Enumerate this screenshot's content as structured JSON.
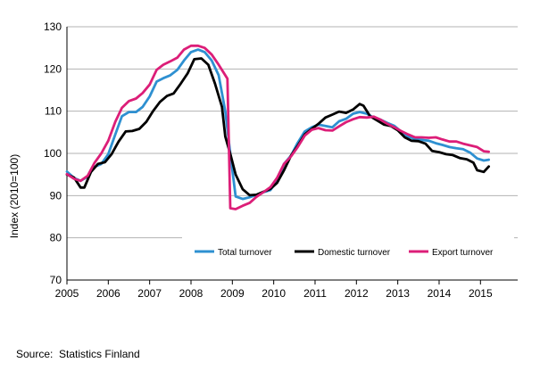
{
  "chart_data": {
    "type": "line",
    "title": "",
    "xlabel": "",
    "ylabel": "Index (2010=100)",
    "ylim": [
      70,
      130
    ],
    "yticks": [
      70,
      80,
      90,
      100,
      110,
      120,
      130
    ],
    "xlim": [
      2005,
      2015.9
    ],
    "xticks": [
      2005,
      2006,
      2007,
      2008,
      2009,
      2010,
      2011,
      2012,
      2013,
      2014,
      2015
    ],
    "xtick_labels": [
      "2005",
      "2006",
      "2007",
      "2008",
      "2009",
      "2010",
      "2011",
      "2012",
      "2013",
      "2014",
      "2015"
    ],
    "grid": "horizontal",
    "legend_position": "bottom-right",
    "series": [
      {
        "name": "Total turnover",
        "color": "#2e90d1",
        "points": [
          [
            2005.0,
            95.7
          ],
          [
            2005.17,
            94.2
          ],
          [
            2005.33,
            93.5
          ],
          [
            2005.5,
            94.5
          ],
          [
            2005.67,
            96.8
          ],
          [
            2005.83,
            97.5
          ],
          [
            2006.0,
            99.8
          ],
          [
            2006.17,
            104.5
          ],
          [
            2006.33,
            108.8
          ],
          [
            2006.5,
            109.8
          ],
          [
            2006.67,
            109.8
          ],
          [
            2006.83,
            111.0
          ],
          [
            2007.0,
            113.5
          ],
          [
            2007.17,
            117.0
          ],
          [
            2007.33,
            117.8
          ],
          [
            2007.5,
            118.5
          ],
          [
            2007.67,
            119.8
          ],
          [
            2007.83,
            122.0
          ],
          [
            2008.0,
            124.0
          ],
          [
            2008.17,
            124.6
          ],
          [
            2008.33,
            124.0
          ],
          [
            2008.5,
            122.0
          ],
          [
            2008.67,
            118.5
          ],
          [
            2008.83,
            110.0
          ],
          [
            2008.95,
            100.0
          ],
          [
            2009.08,
            89.8
          ],
          [
            2009.25,
            89.2
          ],
          [
            2009.42,
            89.6
          ],
          [
            2009.58,
            90.2
          ],
          [
            2009.75,
            90.8
          ],
          [
            2009.92,
            91.3
          ],
          [
            2010.08,
            93.5
          ],
          [
            2010.25,
            97.5
          ],
          [
            2010.42,
            99.5
          ],
          [
            2010.58,
            102.5
          ],
          [
            2010.75,
            105.2
          ],
          [
            2010.92,
            106.2
          ],
          [
            2011.08,
            106.8
          ],
          [
            2011.25,
            106.5
          ],
          [
            2011.42,
            106.2
          ],
          [
            2011.58,
            107.6
          ],
          [
            2011.75,
            108.2
          ],
          [
            2011.92,
            109.4
          ],
          [
            2012.08,
            109.8
          ],
          [
            2012.25,
            109.4
          ],
          [
            2012.42,
            108.5
          ],
          [
            2012.58,
            108.0
          ],
          [
            2012.75,
            107.2
          ],
          [
            2012.92,
            106.5
          ],
          [
            2013.08,
            105.2
          ],
          [
            2013.25,
            104.0
          ],
          [
            2013.42,
            103.4
          ],
          [
            2013.58,
            103.2
          ],
          [
            2013.75,
            103.0
          ],
          [
            2013.92,
            102.4
          ],
          [
            2014.08,
            102.0
          ],
          [
            2014.25,
            101.5
          ],
          [
            2014.42,
            101.2
          ],
          [
            2014.58,
            101.0
          ],
          [
            2014.75,
            100.2
          ],
          [
            2014.92,
            98.8
          ],
          [
            2015.08,
            98.3
          ],
          [
            2015.2,
            98.5
          ]
        ]
      },
      {
        "name": "Domestic turnover",
        "color": "#000000",
        "points": [
          [
            2005.0,
            95.0
          ],
          [
            2005.17,
            94.3
          ],
          [
            2005.33,
            91.9
          ],
          [
            2005.42,
            91.9
          ],
          [
            2005.58,
            95.6
          ],
          [
            2005.75,
            97.5
          ],
          [
            2005.92,
            97.9
          ],
          [
            2006.08,
            99.8
          ],
          [
            2006.25,
            102.8
          ],
          [
            2006.42,
            105.2
          ],
          [
            2006.58,
            105.3
          ],
          [
            2006.75,
            105.8
          ],
          [
            2006.92,
            107.5
          ],
          [
            2007.08,
            110.0
          ],
          [
            2007.25,
            112.2
          ],
          [
            2007.42,
            113.6
          ],
          [
            2007.58,
            114.2
          ],
          [
            2007.75,
            116.5
          ],
          [
            2007.92,
            119.0
          ],
          [
            2008.08,
            122.3
          ],
          [
            2008.25,
            122.5
          ],
          [
            2008.42,
            121.0
          ],
          [
            2008.58,
            116.5
          ],
          [
            2008.75,
            111.0
          ],
          [
            2008.83,
            104.0
          ],
          [
            2008.96,
            99.5
          ],
          [
            2009.08,
            95.0
          ],
          [
            2009.25,
            91.5
          ],
          [
            2009.42,
            90.1
          ],
          [
            2009.58,
            90.2
          ],
          [
            2009.75,
            90.9
          ],
          [
            2009.92,
            91.6
          ],
          [
            2010.08,
            93.0
          ],
          [
            2010.25,
            96.0
          ],
          [
            2010.42,
            99.5
          ],
          [
            2010.58,
            101.8
          ],
          [
            2010.75,
            104.5
          ],
          [
            2010.92,
            105.8
          ],
          [
            2011.08,
            107.0
          ],
          [
            2011.25,
            108.5
          ],
          [
            2011.42,
            109.2
          ],
          [
            2011.58,
            109.9
          ],
          [
            2011.75,
            109.6
          ],
          [
            2011.92,
            110.4
          ],
          [
            2012.08,
            111.7
          ],
          [
            2012.17,
            111.3
          ],
          [
            2012.33,
            108.8
          ],
          [
            2012.5,
            107.8
          ],
          [
            2012.67,
            106.8
          ],
          [
            2012.83,
            106.5
          ],
          [
            2013.0,
            105.5
          ],
          [
            2013.17,
            103.8
          ],
          [
            2013.33,
            103.0
          ],
          [
            2013.5,
            102.9
          ],
          [
            2013.67,
            102.3
          ],
          [
            2013.83,
            100.6
          ],
          [
            2014.0,
            100.3
          ],
          [
            2014.17,
            99.8
          ],
          [
            2014.33,
            99.6
          ],
          [
            2014.5,
            98.9
          ],
          [
            2014.67,
            98.6
          ],
          [
            2014.83,
            97.8
          ],
          [
            2014.92,
            96.0
          ],
          [
            2015.08,
            95.6
          ],
          [
            2015.2,
            96.9
          ]
        ]
      },
      {
        "name": "Export turnover",
        "color": "#dc1e78",
        "points": [
          [
            2005.0,
            95.1
          ],
          [
            2005.17,
            94.0
          ],
          [
            2005.33,
            93.5
          ],
          [
            2005.5,
            94.7
          ],
          [
            2005.67,
            97.8
          ],
          [
            2005.83,
            100.0
          ],
          [
            2006.0,
            103.0
          ],
          [
            2006.17,
            107.5
          ],
          [
            2006.33,
            110.8
          ],
          [
            2006.5,
            112.4
          ],
          [
            2006.67,
            113.0
          ],
          [
            2006.83,
            114.3
          ],
          [
            2007.0,
            116.3
          ],
          [
            2007.17,
            119.8
          ],
          [
            2007.33,
            121.0
          ],
          [
            2007.5,
            121.8
          ],
          [
            2007.67,
            122.7
          ],
          [
            2007.83,
            124.6
          ],
          [
            2008.0,
            125.5
          ],
          [
            2008.17,
            125.5
          ],
          [
            2008.33,
            125.0
          ],
          [
            2008.5,
            123.4
          ],
          [
            2008.67,
            121.0
          ],
          [
            2008.88,
            117.7
          ],
          [
            2008.95,
            87.0
          ],
          [
            2009.08,
            86.8
          ],
          [
            2009.25,
            87.6
          ],
          [
            2009.42,
            88.3
          ],
          [
            2009.58,
            89.7
          ],
          [
            2009.75,
            90.8
          ],
          [
            2009.92,
            92.0
          ],
          [
            2010.08,
            94.2
          ],
          [
            2010.25,
            97.5
          ],
          [
            2010.42,
            99.3
          ],
          [
            2010.58,
            101.5
          ],
          [
            2010.75,
            104.2
          ],
          [
            2010.92,
            105.6
          ],
          [
            2011.08,
            106.0
          ],
          [
            2011.25,
            105.5
          ],
          [
            2011.42,
            105.4
          ],
          [
            2011.58,
            106.4
          ],
          [
            2011.75,
            107.4
          ],
          [
            2011.92,
            108.1
          ],
          [
            2012.08,
            108.6
          ],
          [
            2012.25,
            108.5
          ],
          [
            2012.42,
            108.7
          ],
          [
            2012.58,
            108.0
          ],
          [
            2012.75,
            107.0
          ],
          [
            2012.92,
            106.2
          ],
          [
            2013.08,
            105.3
          ],
          [
            2013.25,
            104.5
          ],
          [
            2013.42,
            103.8
          ],
          [
            2013.58,
            103.8
          ],
          [
            2013.75,
            103.7
          ],
          [
            2013.92,
            103.8
          ],
          [
            2014.08,
            103.3
          ],
          [
            2014.25,
            102.8
          ],
          [
            2014.42,
            102.8
          ],
          [
            2014.58,
            102.3
          ],
          [
            2014.75,
            101.9
          ],
          [
            2014.92,
            101.5
          ],
          [
            2015.08,
            100.5
          ],
          [
            2015.2,
            100.4
          ]
        ]
      }
    ]
  },
  "source": {
    "label": "Source:",
    "value": "Statistics Finland"
  }
}
